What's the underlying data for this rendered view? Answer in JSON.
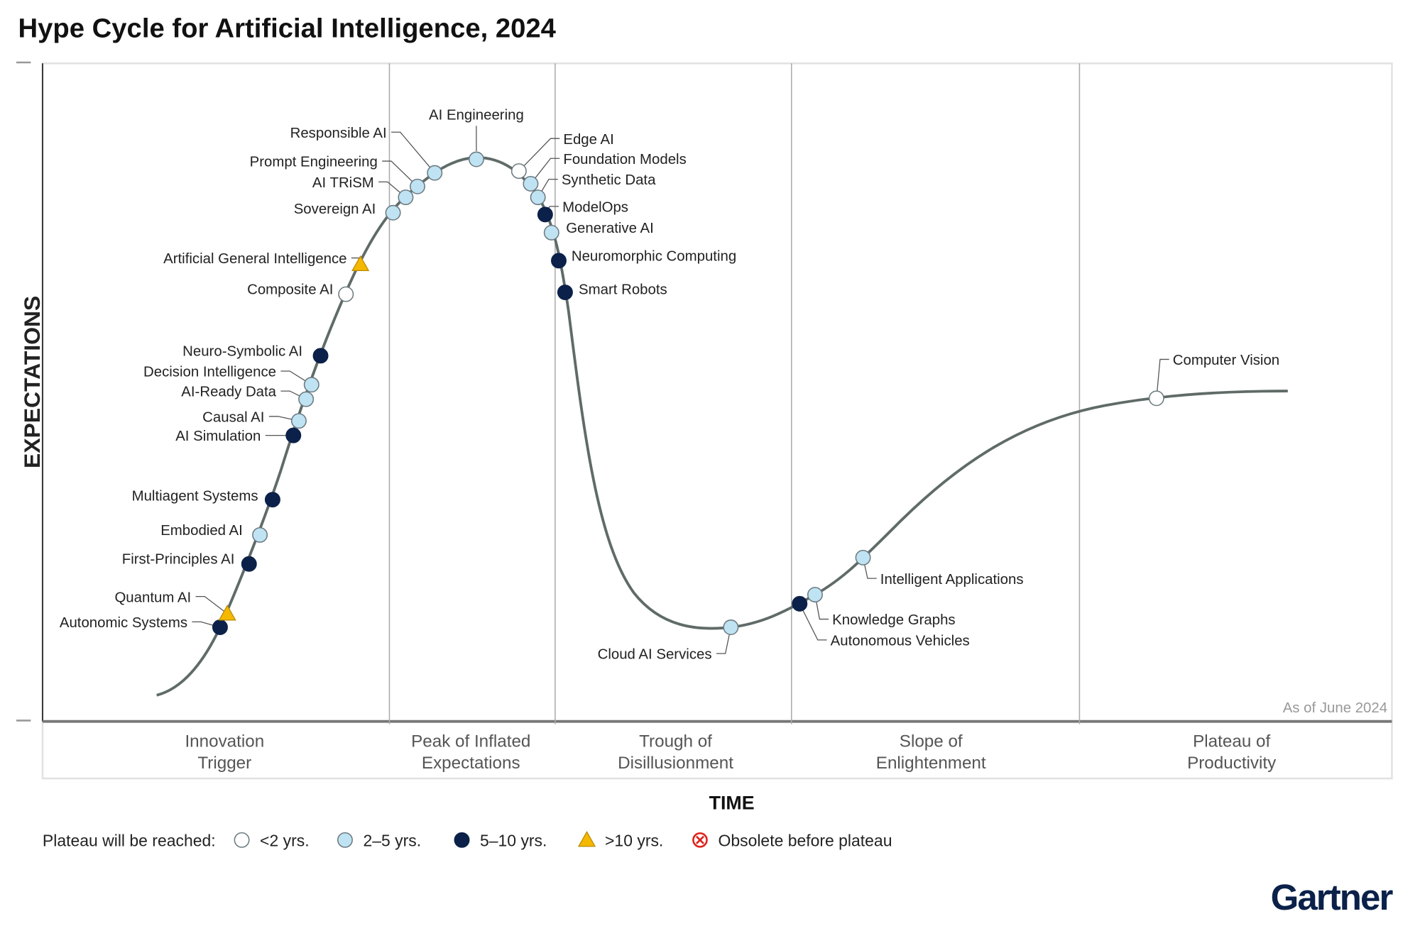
{
  "title": "Hype Cycle for Artificial Intelligence, 2024",
  "y_axis_label": "EXPECTATIONS",
  "x_axis_label": "TIME",
  "as_of": "As of June 2024",
  "brand": "Gartner",
  "colors": {
    "lt2": "#ffffff",
    "2to5": "#bfe3f3",
    "5to10": "#0b2149",
    "gt10": "#f5b800",
    "obsolete": "#e0201b",
    "curve": "#5f6b68"
  },
  "phases": [
    "Innovation Trigger",
    "Peak of Inflated Expectations",
    "Trough of Disillusionment",
    "Slope of Enlightenment",
    "Plateau of Productivity"
  ],
  "phase_lines": [
    [
      "Innovation",
      "Trigger"
    ],
    [
      "Peak of Inflated",
      "Expectations"
    ],
    [
      "Trough of",
      "Disillusionment"
    ],
    [
      "Slope of",
      "Enlightenment"
    ],
    [
      "Plateau of",
      "Productivity"
    ]
  ],
  "legend": {
    "title": "Plateau will be reached:",
    "items": [
      {
        "key": "lt2",
        "label": "<2 yrs."
      },
      {
        "key": "2to5",
        "label": "2–5 yrs."
      },
      {
        "key": "5to10",
        "label": "5–10 yrs."
      },
      {
        "key": "gt10",
        "label": ">10 yrs."
      },
      {
        "key": "obsolete",
        "label": "Obsolete before plateau"
      }
    ]
  },
  "chart_data": {
    "type": "hype-cycle",
    "title": "Hype Cycle for Artificial Intelligence, 2024",
    "xlabel": "TIME",
    "ylabel": "EXPECTATIONS",
    "technologies": [
      {
        "name": "Autonomic Systems",
        "phase": "Innovation Trigger",
        "plateau": "5to10"
      },
      {
        "name": "Quantum AI",
        "phase": "Innovation Trigger",
        "plateau": "gt10"
      },
      {
        "name": "First-Principles AI",
        "phase": "Innovation Trigger",
        "plateau": "5to10"
      },
      {
        "name": "Embodied AI",
        "phase": "Innovation Trigger",
        "plateau": "2to5"
      },
      {
        "name": "Multiagent Systems",
        "phase": "Innovation Trigger",
        "plateau": "5to10"
      },
      {
        "name": "AI Simulation",
        "phase": "Innovation Trigger",
        "plateau": "5to10"
      },
      {
        "name": "Causal AI",
        "phase": "Innovation Trigger",
        "plateau": "2to5"
      },
      {
        "name": "AI-Ready Data",
        "phase": "Innovation Trigger",
        "plateau": "2to5"
      },
      {
        "name": "Decision Intelligence",
        "phase": "Innovation Trigger",
        "plateau": "2to5"
      },
      {
        "name": "Neuro-Symbolic AI",
        "phase": "Innovation Trigger",
        "plateau": "5to10"
      },
      {
        "name": "Composite AI",
        "phase": "Innovation Trigger",
        "plateau": "lt2"
      },
      {
        "name": "Artificial General Intelligence",
        "phase": "Innovation Trigger",
        "plateau": "gt10"
      },
      {
        "name": "Sovereign AI",
        "phase": "Peak of Inflated Expectations",
        "plateau": "2to5"
      },
      {
        "name": "AI TRiSM",
        "phase": "Peak of Inflated Expectations",
        "plateau": "2to5"
      },
      {
        "name": "Prompt Engineering",
        "phase": "Peak of Inflated Expectations",
        "plateau": "2to5"
      },
      {
        "name": "Responsible AI",
        "phase": "Peak of Inflated Expectations",
        "plateau": "2to5"
      },
      {
        "name": "AI Engineering",
        "phase": "Peak of Inflated Expectations",
        "plateau": "2to5"
      },
      {
        "name": "Edge AI",
        "phase": "Peak of Inflated Expectations",
        "plateau": "lt2"
      },
      {
        "name": "Foundation Models",
        "phase": "Peak of Inflated Expectations",
        "plateau": "2to5"
      },
      {
        "name": "Synthetic Data",
        "phase": "Peak of Inflated Expectations",
        "plateau": "2to5"
      },
      {
        "name": "ModelOps",
        "phase": "Peak of Inflated Expectations",
        "plateau": "5to10"
      },
      {
        "name": "Generative AI",
        "phase": "Peak of Inflated Expectations",
        "plateau": "2to5"
      },
      {
        "name": "Neuromorphic Computing",
        "phase": "Peak of Inflated Expectations",
        "plateau": "5to10"
      },
      {
        "name": "Smart Robots",
        "phase": "Trough of Disillusionment",
        "plateau": "5to10"
      },
      {
        "name": "Cloud AI Services",
        "phase": "Trough of Disillusionment",
        "plateau": "2to5"
      },
      {
        "name": "Autonomous Vehicles",
        "phase": "Slope of Enlightenment",
        "plateau": "5to10"
      },
      {
        "name": "Knowledge Graphs",
        "phase": "Slope of Enlightenment",
        "plateau": "2to5"
      },
      {
        "name": "Intelligent Applications",
        "phase": "Slope of Enlightenment",
        "plateau": "2to5"
      },
      {
        "name": "Computer Vision",
        "phase": "Plateau of Productivity",
        "plateau": "lt2"
      }
    ]
  }
}
